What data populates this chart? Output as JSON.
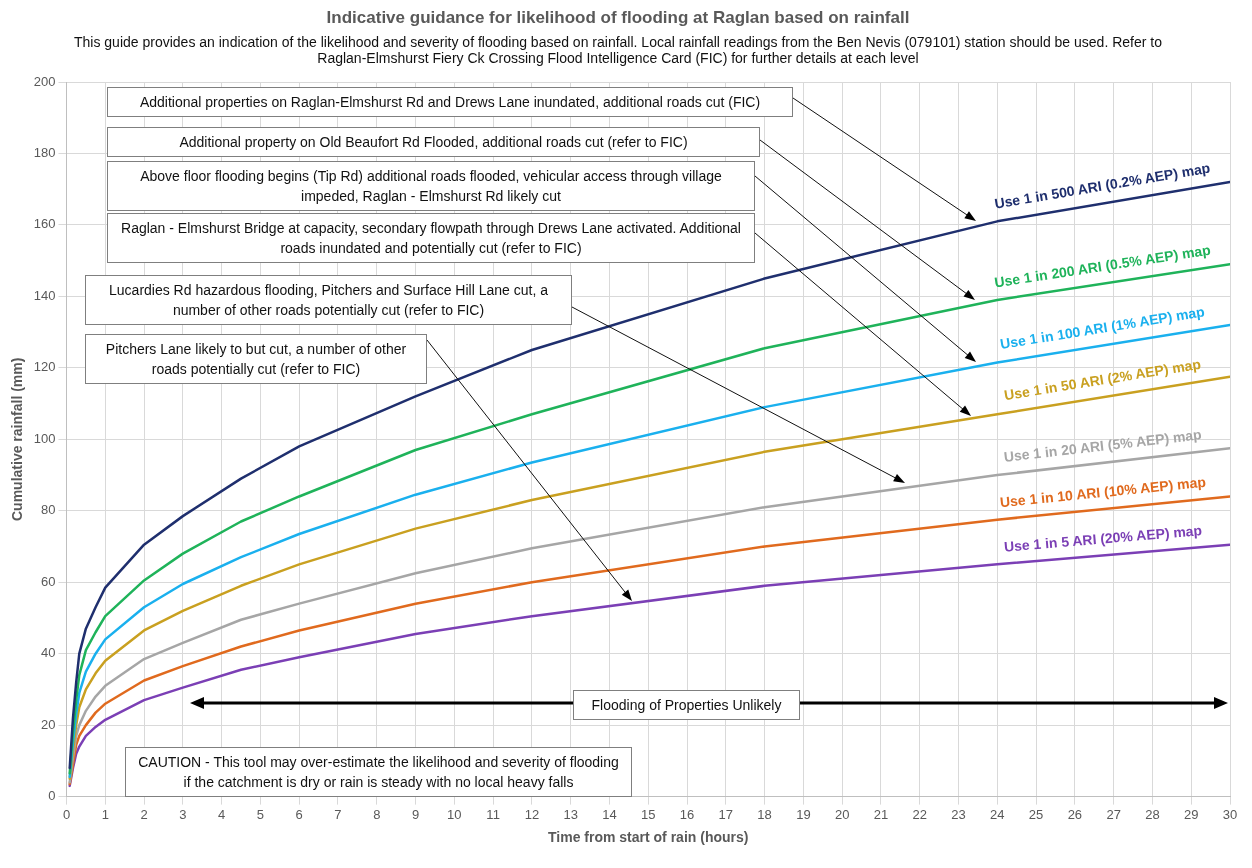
{
  "chart_data": {
    "type": "line",
    "title": "Indicative guidance for likelihood of flooding at Raglan based on rainfall",
    "subtitle": "This guide provides an indication of the likelihood and severity of flooding based on rainfall. Local rainfall readings from the Ben Nevis (079101) station should be used. Refer to Raglan-Elmshurst Fiery Ck Crossing Flood Intelligence Card (FIC) for further details at each level",
    "xlabel": "Time from start of rain (hours)",
    "ylabel": "Cumulative rainfall (mm)",
    "x": [
      0.083,
      0.167,
      0.25,
      0.33,
      0.5,
      0.75,
      1,
      2,
      3,
      4.5,
      6,
      9,
      12,
      18,
      24,
      30
    ],
    "xlim": [
      0,
      30
    ],
    "xticks": [
      0,
      1,
      2,
      3,
      4,
      5,
      6,
      7,
      8,
      9,
      10,
      11,
      12,
      13,
      14,
      15,
      16,
      17,
      18,
      19,
      20,
      21,
      22,
      23,
      24,
      25,
      26,
      27,
      28,
      29,
      30
    ],
    "ylim": [
      0,
      200
    ],
    "yticks": [
      0,
      20,
      40,
      60,
      80,
      100,
      120,
      140,
      160,
      180,
      200
    ],
    "grid": true,
    "legend": false,
    "marker": "none",
    "line_style": "solid",
    "series": [
      {
        "name": "Use 1 in 500 ARI (0.2% AEP) map",
        "color": "#1f2f6e",
        "values": [
          8,
          22,
          32,
          40,
          47,
          53,
          58.5,
          70.5,
          78.5,
          89,
          98,
          112,
          125,
          145,
          161,
          172
        ]
      },
      {
        "name": "Use 1 in 200 ARI (0.5% AEP) map",
        "color": "#1fb35a",
        "values": [
          6.5,
          18,
          27,
          34,
          41,
          46,
          50.5,
          60.5,
          68,
          77,
          84,
          97,
          107,
          125.5,
          139,
          149
        ]
      },
      {
        "name": "Use 1 in 100 ARI (1% AEP) map",
        "color": "#1ab0ee",
        "values": [
          5.5,
          15,
          23,
          29,
          35,
          40,
          44,
          53,
          59.5,
          67,
          73.5,
          84.5,
          93.5,
          109,
          121.5,
          132
        ]
      },
      {
        "name": "Use 1 in 50 ARI (2% AEP) map",
        "color": "#c9a020",
        "values": [
          5,
          13,
          20,
          25,
          30,
          34.5,
          38,
          46.5,
          52,
          59,
          65,
          75,
          83,
          96.5,
          107,
          117.5
        ]
      },
      {
        "name": "Use 1 in 20 ARI (5% AEP) map",
        "color": "#a6a6a6",
        "values": [
          4,
          11,
          17,
          20,
          24,
          28,
          31,
          38.5,
          43,
          49.5,
          54,
          62.5,
          69.5,
          81,
          90,
          97.5
        ]
      },
      {
        "name": "Use 1 in 10 ARI (10% AEP) map",
        "color": "#e06a1e",
        "values": [
          3.5,
          9,
          14.5,
          17,
          20,
          23.5,
          26,
          32.5,
          36.5,
          42,
          46.5,
          54,
          60,
          70,
          77.5,
          84
        ]
      },
      {
        "name": "Use 1 in 5 ARI (20% AEP) map",
        "color": "#7b3fb5",
        "values": [
          3,
          8,
          12,
          14,
          17,
          19.5,
          21.5,
          27,
          30.5,
          35.5,
          39,
          45.5,
          50.5,
          59,
          65,
          70.5
        ]
      }
    ],
    "annotations": [
      "Additional properties on Raglan-Elmshurst Rd and Drews Lane inundated, additional roads cut (FIC)",
      "Additional property on Old Beaufort Rd Flooded, additional roads cut (refer to FIC)",
      "Above floor flooding begins (Tip Rd) additional roads flooded, vehicular access through village impeded, Raglan - Elmshurst Rd likely cut",
      "Raglan - Elmshurst Bridge at capacity, secondary flowpath through Drews Lane activated. Additional roads inundated and potentially cut (refer to FIC)",
      "Lucardies Rd hazardous flooding, Pitchers and Surface Hill Lane cut, a number of other roads potentially cut (refer to FIC)",
      "Pitchers Lane likely to but cut, a number of other roads potentially cut (refer to FIC)",
      "Flooding of Properties Unlikely",
      "CAUTION - This tool may over-estimate the likelihood and severity of flooding if the catchment is dry or rain is steady with no local heavy falls"
    ]
  }
}
